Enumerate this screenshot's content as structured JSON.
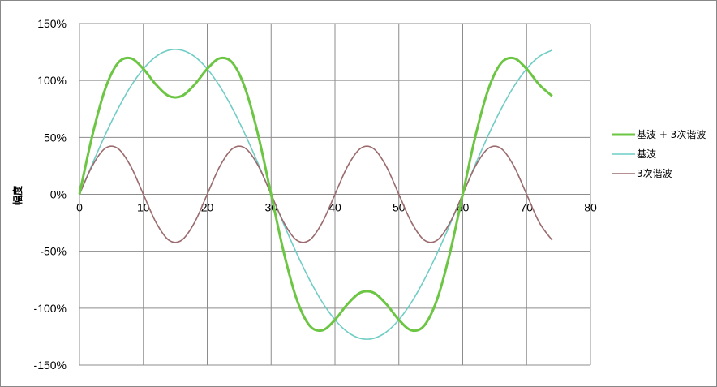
{
  "chart_data": {
    "type": "line",
    "title": "",
    "xlabel": "",
    "ylabel": "幅度",
    "xlim": [
      0,
      80
    ],
    "ylim": [
      -150,
      150
    ],
    "x_ticks": [
      "0",
      "10",
      "20",
      "30",
      "40",
      "50",
      "60",
      "70",
      "80"
    ],
    "y_ticks": [
      "150%",
      "100%",
      "50%",
      "0%",
      "-50%",
      "-100%",
      "-150%"
    ],
    "y_tick_values": [
      150,
      100,
      50,
      0,
      -50,
      -100,
      -150
    ],
    "x_tick_values": [
      0,
      10,
      20,
      30,
      40,
      50,
      60,
      70,
      80
    ],
    "grid": true,
    "legend": "right",
    "x": [
      0,
      2,
      4,
      6,
      8,
      10,
      12,
      14,
      16,
      18,
      20,
      22,
      24,
      26,
      28,
      30,
      32,
      34,
      36,
      38,
      40,
      42,
      44,
      46,
      48,
      50,
      52,
      54,
      56,
      58,
      60,
      62,
      64,
      66,
      68,
      70,
      72,
      74
    ],
    "series": [
      {
        "name": "基波 + 3次谐波",
        "color": "#6cc644",
        "values": [
          0,
          51.4,
          92.1,
          115.1,
          119.5,
          110.2,
          96.2,
          86.3,
          86.3,
          96.2,
          110.2,
          119.5,
          115.1,
          92.1,
          51.4,
          0,
          -51.4,
          -92.1,
          -115.1,
          -119.5,
          -110.2,
          -96.2,
          -86.3,
          -86.3,
          -96.2,
          -110.2,
          -119.5,
          -115.1,
          -92.1,
          -51.4,
          0,
          51.4,
          92.1,
          115.1,
          119.5,
          110.2,
          96.2,
          86.3
        ]
      },
      {
        "name": "基波",
        "color": "#6fcdc5",
        "values": [
          0,
          26.5,
          51.8,
          74.8,
          94.6,
          110.2,
          121.1,
          126.6,
          126.6,
          121.1,
          110.2,
          94.6,
          74.8,
          51.8,
          26.5,
          0,
          -26.5,
          -51.8,
          -74.8,
          -94.6,
          -110.2,
          -121.1,
          -126.6,
          -126.6,
          -121.1,
          -110.2,
          -94.6,
          -74.8,
          -51.8,
          -26.5,
          0,
          26.5,
          51.8,
          74.8,
          94.6,
          110.2,
          121.1,
          126.6
        ]
      },
      {
        "name": "3次谐波",
        "color": "#9b6b6e",
        "values": [
          0,
          24.9,
          40.3,
          40.3,
          24.9,
          0,
          -24.9,
          -40.3,
          -40.3,
          -24.9,
          0,
          24.9,
          40.3,
          40.3,
          24.9,
          0,
          -24.9,
          -40.3,
          -40.3,
          -24.9,
          0,
          24.9,
          40.3,
          40.3,
          24.9,
          0,
          -24.9,
          -40.3,
          -40.3,
          -24.9,
          0,
          24.9,
          40.3,
          40.3,
          24.9,
          0,
          -24.9,
          -40.3
        ]
      }
    ]
  }
}
